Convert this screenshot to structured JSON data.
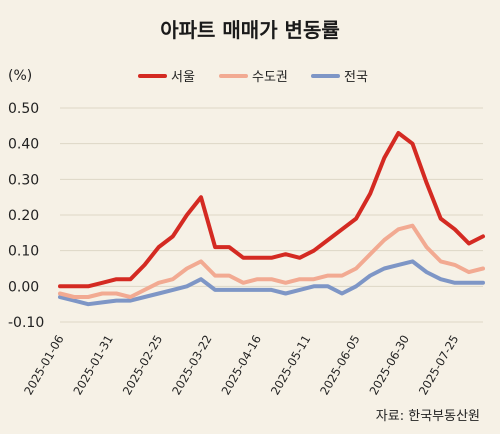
{
  "chart_data": {
    "type": "line",
    "title": "아파트 매매가 변동률",
    "unit_label": "(%)",
    "source": "자료: 한국부동산원",
    "ylim": [
      -0.1,
      0.5
    ],
    "yticks": [
      "0.50",
      "0.40",
      "0.30",
      "0.20",
      "0.10",
      "0.00",
      "-0.10"
    ],
    "xtick_labels": [
      "2025-01-06",
      "2025-01-31",
      "2025-02-25",
      "2025-03-22",
      "2025-04-16",
      "2025-05-11",
      "2025-06-05",
      "2025-06-30",
      "2025-07-25"
    ],
    "grid": true,
    "legend_position": "top-center",
    "series": [
      {
        "name": "서울",
        "color": "#d42a22",
        "values": [
          0.0,
          0.0,
          0.0,
          0.01,
          0.02,
          0.02,
          0.06,
          0.11,
          0.14,
          0.2,
          0.25,
          0.11,
          0.11,
          0.08,
          0.08,
          0.08,
          0.09,
          0.08,
          0.1,
          0.13,
          0.16,
          0.19,
          0.26,
          0.36,
          0.43,
          0.4,
          0.29,
          0.19,
          0.16,
          0.12,
          0.14
        ]
      },
      {
        "name": "수도권",
        "color": "#f2aa92",
        "values": [
          -0.02,
          -0.03,
          -0.03,
          -0.02,
          -0.02,
          -0.03,
          -0.01,
          0.01,
          0.02,
          0.05,
          0.07,
          0.03,
          0.03,
          0.01,
          0.02,
          0.02,
          0.01,
          0.02,
          0.02,
          0.03,
          0.03,
          0.05,
          0.09,
          0.13,
          0.16,
          0.17,
          0.11,
          0.07,
          0.06,
          0.04,
          0.05
        ]
      },
      {
        "name": "전국",
        "color": "#7e96c6",
        "values": [
          -0.03,
          -0.04,
          -0.05,
          -0.045,
          -0.04,
          -0.04,
          -0.03,
          -0.02,
          -0.01,
          0.0,
          0.02,
          -0.01,
          -0.01,
          -0.01,
          -0.01,
          -0.01,
          -0.02,
          -0.01,
          0.0,
          0.0,
          -0.02,
          0.0,
          0.03,
          0.05,
          0.06,
          0.07,
          0.04,
          0.02,
          0.01,
          0.01,
          0.01
        ]
      }
    ]
  }
}
